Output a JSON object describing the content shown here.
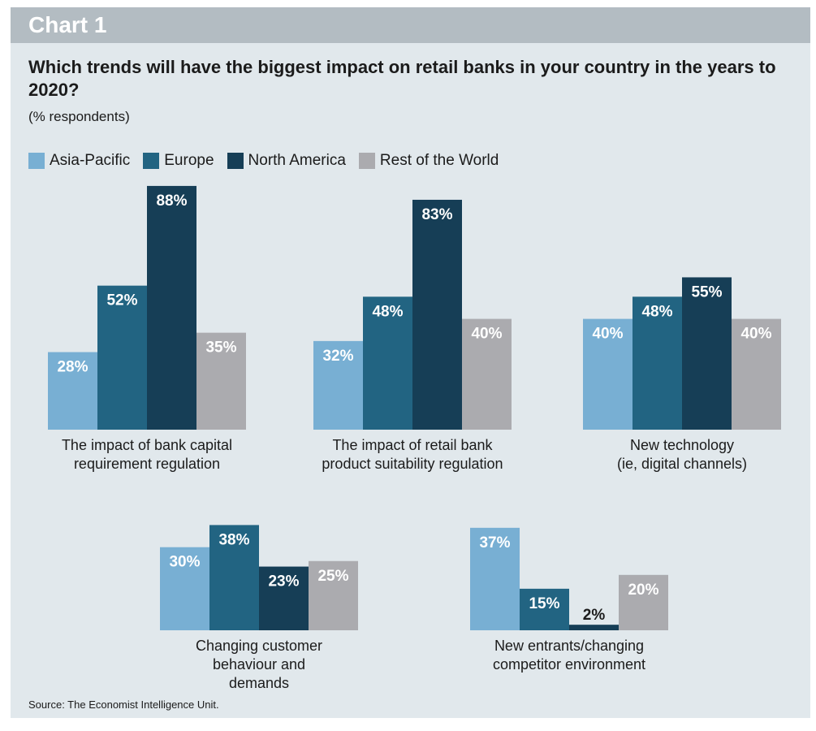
{
  "header": {
    "chart_label": "Chart 1",
    "title": "Which trends will have the biggest impact on retail banks in your country in the years to 2020?",
    "subtitle": "(% respondents)"
  },
  "legend": [
    {
      "name": "Asia-Pacific",
      "color": "#78afd3"
    },
    {
      "name": "Europe",
      "color": "#226482"
    },
    {
      "name": "North America",
      "color": "#163e56"
    },
    {
      "name": "Rest of the World",
      "color": "#ababaf"
    }
  ],
  "chart_data": {
    "type": "bar",
    "title": "Which trends will have the biggest impact on retail banks in your country in the years to 2020?",
    "subtitle": "(% respondents)",
    "xlabel": "",
    "ylabel": "",
    "unit": "%",
    "ylim": [
      0,
      100
    ],
    "legend_position": "top-left",
    "grid": false,
    "series_names": [
      "Asia-Pacific",
      "Europe",
      "North America",
      "Rest of the World"
    ],
    "groups": [
      {
        "category": [
          "The impact of bank capital",
          "requirement regulation"
        ],
        "values": [
          28,
          52,
          88,
          35
        ],
        "labels": [
          "28%",
          "52%",
          "88%",
          "35%"
        ]
      },
      {
        "category": [
          "The impact of retail bank",
          "product suitability regulation"
        ],
        "values": [
          32,
          48,
          83,
          40
        ],
        "labels": [
          "32%",
          "48%",
          "83%",
          "40%"
        ]
      },
      {
        "category": [
          "New technology",
          "(ie, digital channels)"
        ],
        "values": [
          40,
          48,
          55,
          40
        ],
        "labels": [
          "40%",
          "48%",
          "55%",
          "40%"
        ]
      },
      {
        "category": [
          "Changing customer",
          "behaviour and",
          "demands"
        ],
        "values": [
          30,
          38,
          23,
          25
        ],
        "labels": [
          "30%",
          "38%",
          "23%",
          "25%"
        ]
      },
      {
        "category": [
          "New entrants/changing",
          "competitor environment"
        ],
        "values": [
          37,
          15,
          2,
          20
        ],
        "labels": [
          "37%",
          "15%",
          "2%",
          "20%"
        ]
      }
    ]
  },
  "footer": {
    "source": "Source: The Economist Intelligence Unit."
  }
}
